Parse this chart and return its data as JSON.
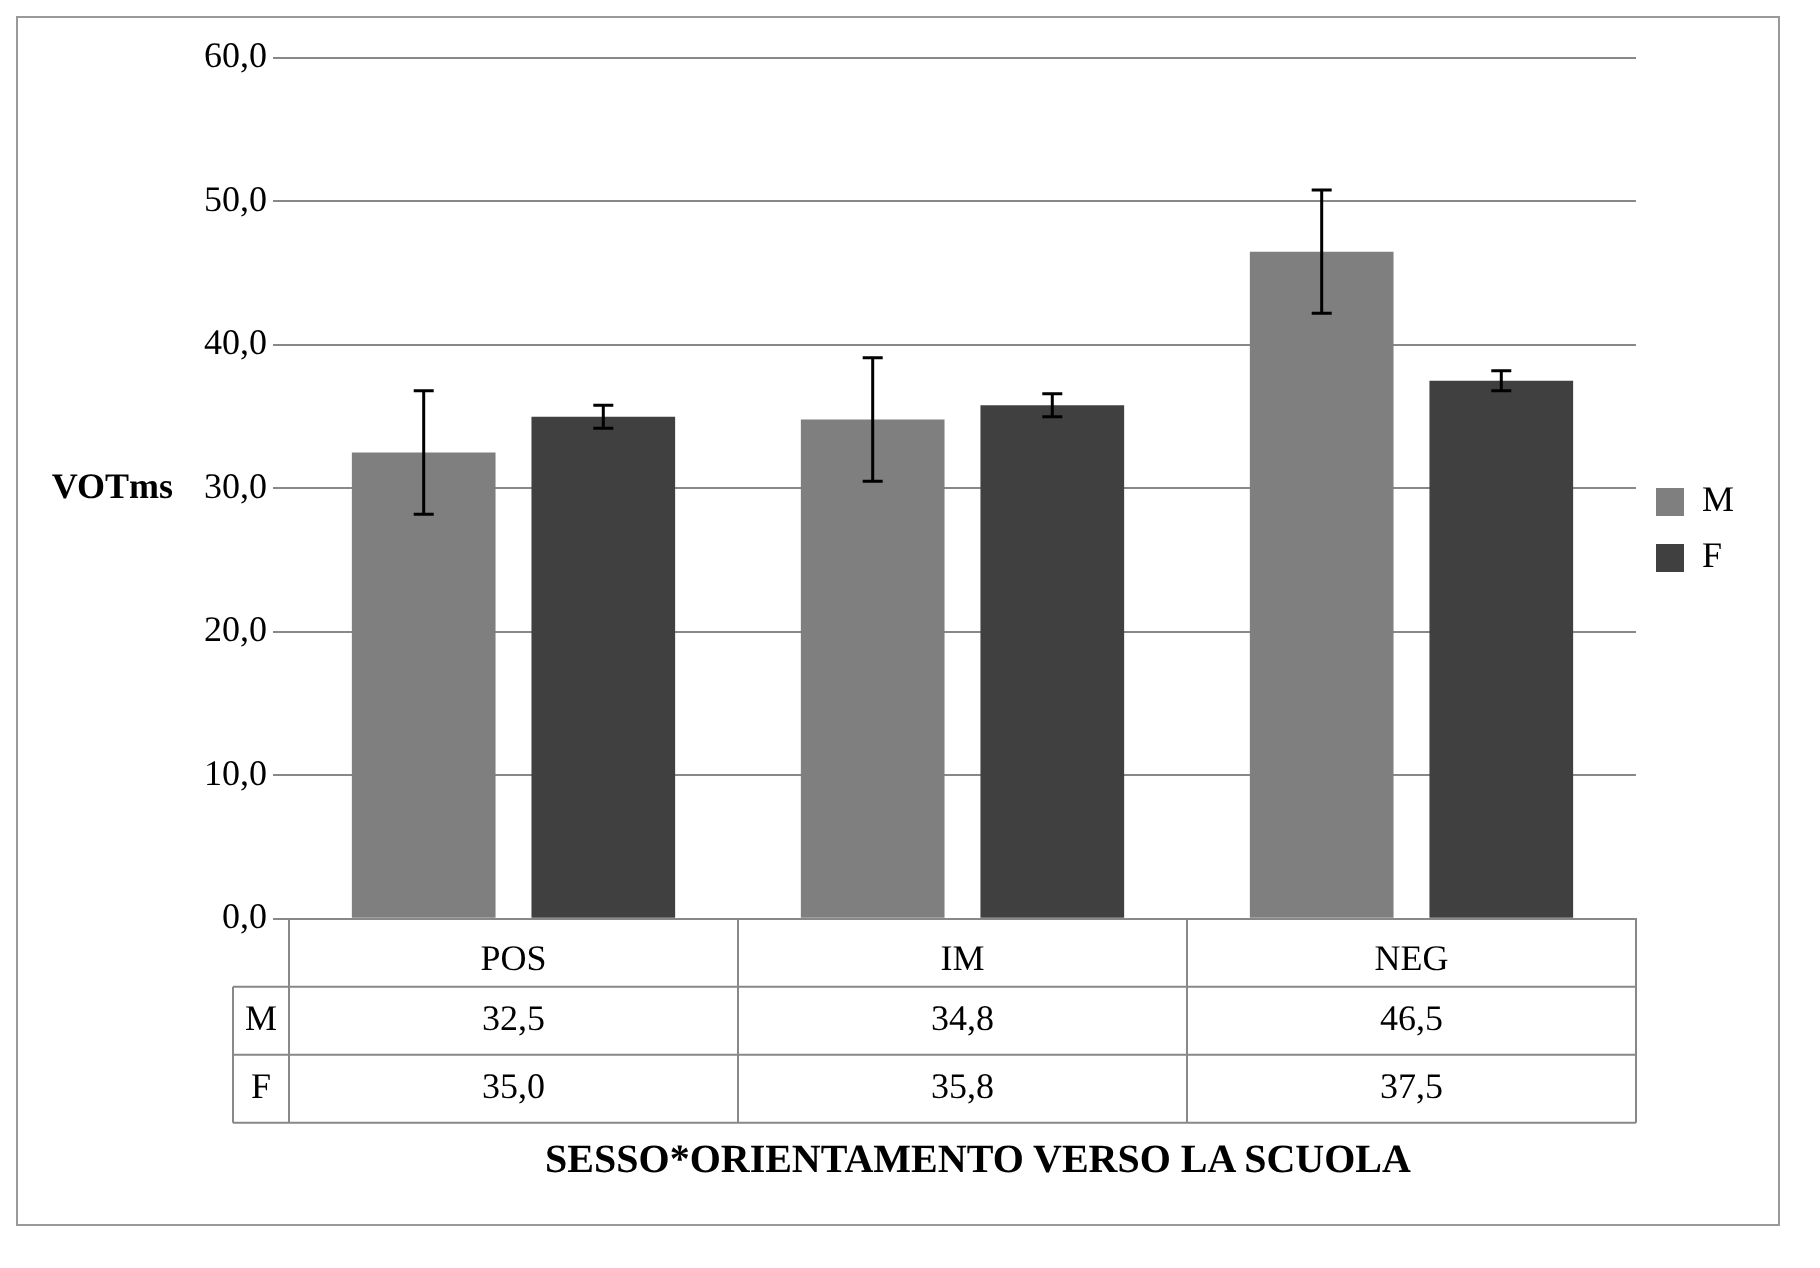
{
  "chart_data": {
    "type": "bar",
    "xlabel": "SESSO*ORIENTAMENTO VERSO LA SCUOLA",
    "ylabel": "VOTms",
    "categories": [
      "POS",
      "IM",
      "NEG"
    ],
    "series": [
      {
        "name": "M",
        "color": "#7f7f7f",
        "values": [
          32.5,
          34.8,
          46.5
        ],
        "errors": [
          4.3,
          4.3,
          4.3
        ],
        "value_labels": [
          "32,5",
          "34,8",
          "46,5"
        ]
      },
      {
        "name": "F",
        "color": "#404040",
        "values": [
          35.0,
          35.8,
          37.5
        ],
        "errors": [
          0.8,
          0.8,
          0.7
        ],
        "value_labels": [
          "35,0",
          "35,8",
          "37,5"
        ]
      }
    ],
    "ylim": [
      0,
      60
    ],
    "yticks": [
      {
        "value": 0,
        "label": "0,0"
      },
      {
        "value": 10,
        "label": "10,0"
      },
      {
        "value": 20,
        "label": "20,0"
      },
      {
        "value": 30,
        "label": "30,0"
      },
      {
        "value": 40,
        "label": "40,0"
      },
      {
        "value": 50,
        "label": "50,0"
      },
      {
        "value": 60,
        "label": "60,0"
      }
    ],
    "grid": "y",
    "legend": "right"
  }
}
